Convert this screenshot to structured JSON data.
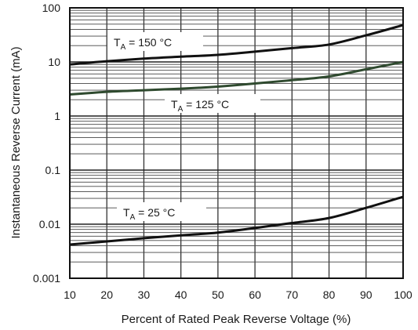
{
  "chart_data": {
    "type": "line",
    "title": "",
    "xlabel": "Percent of Rated Peak Reverse Voltage (%)",
    "ylabel": "Instantaneous Reverse Current (mA)",
    "xlim": [
      10,
      100
    ],
    "ylim": [
      0.001,
      100
    ],
    "yscale": "log",
    "grid": true,
    "x_ticks": [
      10,
      20,
      30,
      40,
      50,
      60,
      70,
      80,
      90,
      100
    ],
    "y_ticks": [
      "0.001",
      "0.01",
      "0.1",
      "1",
      "10",
      "100"
    ],
    "series": [
      {
        "name": "TA = 150 °C",
        "label_main": "T",
        "label_sub": "A",
        "label_rest": " = 150 °C",
        "color": "#111111",
        "x": [
          10,
          20,
          30,
          40,
          50,
          60,
          70,
          80,
          90,
          100
        ],
        "y": [
          9,
          10.3,
          11.5,
          12.5,
          13.5,
          15.5,
          18,
          21,
          31,
          48
        ]
      },
      {
        "name": "TA = 125 °C",
        "label_main": "T",
        "label_sub": "A",
        "label_rest": " = 125 °C",
        "color": "#2f4a2f",
        "x": [
          10,
          20,
          30,
          40,
          50,
          60,
          70,
          80,
          90,
          100
        ],
        "y": [
          2.5,
          2.8,
          3.0,
          3.2,
          3.5,
          4.0,
          4.6,
          5.4,
          7.3,
          10
        ]
      },
      {
        "name": "TA = 25 °C",
        "label_main": "T",
        "label_sub": "A",
        "label_rest": " = 25 °C",
        "color": "#111111",
        "x": [
          10,
          20,
          30,
          40,
          50,
          60,
          70,
          80,
          90,
          100
        ],
        "y": [
          0.0042,
          0.0048,
          0.0055,
          0.0062,
          0.007,
          0.0085,
          0.0105,
          0.013,
          0.02,
          0.032
        ]
      }
    ]
  }
}
